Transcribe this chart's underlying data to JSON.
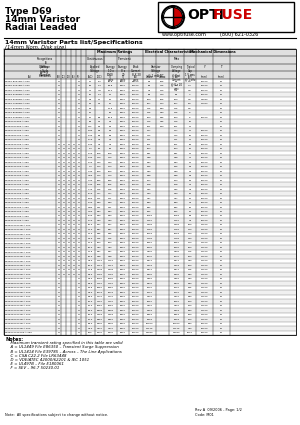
{
  "title_line1": "Type D69",
  "title_line2": "14mm Varistor",
  "title_line3": "Radial Leaded",
  "website": "www.optifuse.com",
  "phone": "(800) 621-0326",
  "section_title": "14mm Varistor Parts list/Specifications",
  "section_subtitle": "(14mm Nom. Disk size)",
  "logo_red": "#cc0000",
  "bg_color": "#ffffff",
  "footer_note": "Note:  All specifications subject to change without notice.",
  "revision": "Rev A  09/2006 - Page: 1/2",
  "code": "Code: M01",
  "table_rows": [
    [
      "D69Z1.8S070B-A.S50",
      "N",
      "",
      "",
      "",
      "N",
      "11",
      "14",
      "5.2",
      "50.8",
      "6000",
      "10000",
      "85",
      "205",
      "85",
      "2.5",
      "10000",
      "50",
      "0.0057|0.0142|0.813",
      "0.0193|0.4900|12.45"
    ],
    [
      "D69Z2.2S075B-A.S50",
      "N",
      "",
      "",
      "",
      "N",
      "14",
      "18",
      "6.3",
      "60.8",
      "6000",
      "10000",
      "90",
      "215",
      "90",
      "3.0",
      "10000",
      "50",
      "0.0057|0.0142|0.813",
      "0.0193|0.4900|12.45"
    ],
    [
      "D69Z2.7S082B-A.S50",
      "N",
      "",
      "",
      "",
      "N",
      "17",
      "21",
      "7.8",
      "70.4",
      "6000",
      "10000",
      "94",
      "226",
      "94",
      "3.5",
      "10000",
      "50",
      "0.0057|0.0142|0.813",
      "0.0193|0.4900|12.45"
    ],
    [
      "D69Z3.3S082B-A.S50",
      "N",
      "",
      "",
      "",
      "N",
      "21",
      "25",
      "9.4",
      "75",
      "6000",
      "10000",
      "96",
      "240",
      "96",
      "4",
      "10000",
      "50",
      "0.0057|0.0142|0.813",
      "0.0193|0.4900|12.45"
    ],
    [
      "D69Z3.9S082B-A.S50",
      "N",
      "",
      "",
      "",
      "N",
      "26",
      "31",
      "11",
      "75",
      "6000",
      "10000",
      "100",
      "255",
      "100",
      "4.5",
      "13333",
      "50",
      "0.0057|0.0142|0.813",
      "0.0193|0.4900|12.45"
    ],
    [
      "D69Z4.7S082B-A.S50",
      "N",
      "",
      "",
      "",
      "N",
      "31",
      "38",
      "13",
      "75",
      "6000",
      "10000",
      "107",
      "274",
      "107",
      "5.5",
      "14444",
      "50",
      "0.0057|0.0142|0.813",
      "0.0193|0.4900|12.45"
    ],
    [
      "D69Z5.6S082B-A.S50",
      "N",
      "",
      "",
      "",
      "N",
      "36",
      "45",
      "",
      "14.5",
      "6000",
      "10000",
      "115",
      "290",
      "115",
      "6.5",
      "",
      "50",
      "",
      ""
    ],
    [
      "D69Z6.8S082B-A.S50",
      "N",
      "",
      "",
      "",
      "N",
      "43",
      "56",
      "",
      "18",
      "6000",
      "10000",
      "125",
      "340",
      "125",
      "8",
      "",
      "50",
      "",
      ""
    ],
    [
      "D69Z8.2S082B-A.S50",
      "N",
      "",
      "",
      "",
      "N",
      "60",
      "75",
      "28",
      "26.5",
      "6000",
      "10000",
      "150",
      "365",
      "150",
      "8",
      "10000",
      "50",
      "0.0057|0.0142|0.813",
      "0.0193|0.4900|12.45"
    ],
    [
      "D69Z10S082B-A.S50",
      "N",
      "",
      "",
      "",
      "N",
      "70",
      "90",
      "33",
      "32",
      "6000",
      "10000",
      "176",
      "415",
      "176",
      "10",
      "",
      "50",
      "",
      ""
    ],
    [
      "D69Z12S082B-A.S50",
      "N",
      "",
      "",
      "",
      "N",
      "85",
      "112",
      "40",
      "40",
      "6000",
      "10000",
      "201",
      "480",
      "201",
      "12",
      "",
      "50",
      "",
      ""
    ],
    [
      "D69Z14S100B-A.S50",
      "N",
      "",
      "",
      "",
      "N",
      "1.40",
      "1.80",
      "78",
      "78",
      "6000",
      "10000",
      "227",
      "",
      "227",
      "14",
      "10000",
      "50",
      "",
      ""
    ],
    [
      "D69Z15S100B-A.S50",
      "N",
      "",
      "",
      "",
      "N",
      "1.50",
      "1.90",
      "82",
      "82",
      "6000",
      "10000",
      "242",
      "",
      "242",
      "15",
      "10000",
      "50",
      "",
      ""
    ],
    [
      "D69Z17S100B-A.S50",
      "N",
      "",
      "",
      "",
      "N",
      "1.70",
      "2.10",
      "94",
      "94",
      "6000",
      "10000",
      "271",
      "",
      "271",
      "17",
      "10000",
      "50",
      "",
      ""
    ],
    [
      "D69Z18S100B-A.S50",
      "N",
      "N",
      "N",
      "N",
      "N",
      "1.60",
      "1.90",
      "94",
      "94",
      "6000",
      "10000",
      "251",
      "",
      "251",
      "18",
      "10000",
      "50",
      "",
      ""
    ],
    [
      "D69Z20S100B-A.S50",
      "N",
      "N",
      "N",
      "N",
      "N",
      "1.60",
      "2.0",
      "98",
      "98",
      "6000",
      "10000",
      "264",
      "",
      "264",
      "20",
      "10000",
      "50",
      "",
      ""
    ],
    [
      "D69Z22S100B-A.S50",
      "N",
      "N",
      "N",
      "N",
      "N",
      "1.80",
      "2.20",
      "108",
      "108",
      "6000",
      "10000",
      "291",
      "",
      "291",
      "22",
      "10000",
      "50",
      "",
      ""
    ],
    [
      "D69Z24S100B-A.S50",
      "N",
      "N",
      "N",
      "N",
      "N",
      "1.90",
      "2.40",
      "119",
      "119",
      "6000",
      "10000",
      "318",
      "",
      "318",
      "24",
      "10000",
      "50",
      "",
      ""
    ],
    [
      "D69Z27S100B-A.S50",
      "N",
      "N",
      "N",
      "N",
      "N",
      "2.10",
      "2.70",
      "130",
      "130",
      "6000",
      "10000",
      "354",
      "",
      "354",
      "27",
      "10000",
      "50",
      "",
      ""
    ],
    [
      "D69Z30S100B-A.S50",
      "N",
      "N",
      "N",
      "N",
      "N",
      "2.40",
      "3.0",
      "143",
      "143",
      "6000",
      "10000",
      "396",
      "",
      "396",
      "30",
      "10000",
      "50",
      "",
      ""
    ],
    [
      "D69Z33S100B-A.S50",
      "N",
      "N",
      "N",
      "N",
      "N",
      "2.60",
      "3.30",
      "159",
      "159",
      "6000",
      "10000",
      "429",
      "",
      "429",
      "33",
      "10000",
      "50",
      "",
      ""
    ],
    [
      "D69Z36S100B-A.S50",
      "N",
      "N",
      "N",
      "N",
      "N",
      "2.90",
      "3.60",
      "173",
      "173",
      "6000",
      "10000",
      "468",
      "",
      "468",
      "36",
      "10000",
      "50",
      "",
      ""
    ],
    [
      "D69Z39S100B-A.S50",
      "N",
      "N",
      "N",
      "N",
      "N",
      "3.10",
      "3.90",
      "186",
      "186",
      "6000",
      "10000",
      "504",
      "",
      "504",
      "39",
      "10000",
      "50",
      "",
      ""
    ],
    [
      "D69Z43S100B-A.S50",
      "N",
      "N",
      "N",
      "N",
      "N",
      "3.40",
      "4.30",
      "205",
      "205",
      "6000",
      "10000",
      "558",
      "",
      "558",
      "43",
      "10000",
      "50",
      "",
      ""
    ],
    [
      "D69Z47S100B-A.S50",
      "N",
      "N",
      "N",
      "N",
      "N",
      "3.70",
      "4.70",
      "225",
      "225",
      "6000",
      "10000",
      "612",
      "",
      "612",
      "47",
      "10000",
      "50",
      "",
      ""
    ],
    [
      "D69Z51S100B-A.S50",
      "N",
      "N",
      "N",
      "N",
      "N",
      "4.10",
      "5.10",
      "247",
      "247",
      "6000",
      "10000",
      "670",
      "",
      "670",
      "51",
      "10000",
      "50",
      "",
      ""
    ],
    [
      "D69Z56S100B-A.S50",
      "N",
      "N",
      "N",
      "N",
      "N",
      "4.50",
      "5.60",
      "271",
      "271",
      "6000",
      "10000",
      "737",
      "",
      "737",
      "56",
      "10000",
      "50",
      "",
      ""
    ],
    [
      "D69Z62S100B-A.S50",
      "N",
      "N",
      "N",
      "N",
      "N",
      "4.90",
      "6.20",
      "300",
      "300",
      "6000",
      "10000",
      "820",
      "",
      "820",
      "62",
      "10000",
      "50",
      "",
      ""
    ],
    [
      "D69Z68S100B-A.S50",
      "N",
      "N",
      "N",
      "N",
      "N",
      "5.40",
      "6.80",
      "331",
      "331",
      "6000",
      "10000",
      "902",
      "",
      "902",
      "68",
      "10000",
      "50",
      "",
      ""
    ],
    [
      "D69Z75S100B-A.S50",
      "N",
      "N",
      "N",
      "N",
      "N",
      "5.90",
      "7.50",
      "364",
      "364",
      "6000",
      "10000",
      "992",
      "",
      "992",
      "75",
      "10000",
      "50",
      "",
      ""
    ],
    [
      "D69Z82S100B-A.S50",
      "N",
      "N",
      "N",
      "N",
      "N",
      "6.50",
      "8.20",
      "400",
      "400",
      "6000",
      "10000",
      "1089",
      "",
      "1089",
      "82",
      "10000",
      "50",
      "",
      ""
    ],
    [
      "D69Z91S100B-A.S50",
      "N",
      "N",
      "N",
      "N",
      "N",
      "7.20",
      "9.10",
      "443",
      "443",
      "6000",
      "10000",
      "1210",
      "",
      "1210",
      "91",
      "10000",
      "50",
      "",
      ""
    ],
    [
      "D69Z100S100B-A.S50",
      "N",
      "N",
      "N",
      "N",
      "N",
      "7.90",
      "10.0",
      "487",
      "487",
      "6000",
      "10000",
      "1329",
      "",
      "1329",
      "100",
      "14000",
      "50",
      "",
      ""
    ],
    [
      "D69Z110S100B-A.S50",
      "N",
      "N",
      "N",
      "N",
      "N",
      "8.70",
      "11.0",
      "537",
      "537",
      "6000",
      "10000",
      "1464",
      "",
      "1464",
      "110",
      "14000",
      "50",
      "",
      ""
    ],
    [
      "D69Z120S100B-A.S50",
      "N",
      "N",
      "N",
      "N",
      "N",
      "9.40",
      "12.0",
      "585",
      "585",
      "6000",
      "10000",
      "1598",
      "",
      "1598",
      "120",
      "14000",
      "50",
      "",
      ""
    ],
    [
      "D69Z130S100B-A.S50",
      "N",
      "N",
      "N",
      "N",
      "N",
      "10.2",
      "13.0",
      "635",
      "635",
      "6000",
      "10000",
      "1729",
      "",
      "1729",
      "130",
      "14000",
      "50",
      "",
      ""
    ],
    [
      "D69Z140S100B-A.S50",
      "N",
      "N",
      "N",
      "N",
      "N",
      "11.0",
      "14.0",
      "684",
      "684",
      "6000",
      "10000",
      "1860",
      "",
      "1860",
      "140",
      "14000",
      "50",
      "",
      ""
    ],
    [
      "D69Z150S100B-A.S50",
      "N",
      "N",
      "N",
      "N",
      "N",
      "11.8",
      "15.0",
      "733",
      "733",
      "6000",
      "10000",
      "1991",
      "",
      "1991",
      "150",
      "14000",
      "50",
      "",
      ""
    ],
    [
      "D69Z175S100B-A.S50",
      "N",
      "N",
      "N",
      "N",
      "N",
      "13.7",
      "17.5",
      "857",
      "857",
      "6000",
      "10000",
      "2332",
      "",
      "2332",
      "175",
      "14000",
      "50",
      "",
      ""
    ],
    [
      "D69Z200S100B-A.S50",
      "N",
      "N",
      "N",
      "N",
      "N",
      "15.6",
      "20.0",
      "978",
      "978",
      "6000",
      "10000",
      "2670",
      "",
      "2670",
      "200",
      "14000",
      "50",
      "",
      ""
    ],
    [
      "D69Z230S100B-A.S50",
      "N",
      "N",
      "N",
      "N",
      "N",
      "18.0",
      "23.0",
      "1124",
      "1124",
      "6000",
      "10000",
      "3072",
      "",
      "3072",
      "230",
      "14000",
      "50",
      "",
      ""
    ],
    [
      "D69Z250S100B-A.S50",
      "N",
      "N",
      "N",
      "N",
      "N",
      "19.5",
      "25.0",
      "1222",
      "1222",
      "6000",
      "10000",
      "3338",
      "",
      "3338",
      "250",
      "14000",
      "50",
      "",
      ""
    ],
    [
      "D69Z275S100B-A.S50",
      "N",
      "N",
      "N",
      "N",
      "N",
      "21.5",
      "27.5",
      "1343",
      "1343",
      "6000",
      "10000",
      "3672",
      "",
      "3672",
      "275",
      "14000",
      "50",
      "",
      ""
    ],
    [
      "D69Z300S100B-A.S50",
      "N",
      "N",
      "N",
      "N",
      "N",
      "23.4",
      "30.0",
      "1464",
      "1464",
      "6000",
      "10000",
      "4002",
      "",
      "4002",
      "300",
      "14000",
      "50",
      "",
      ""
    ],
    [
      "D69Z320S100B-A.S50",
      "N",
      "",
      "",
      "",
      "N",
      "25.0",
      "32.0",
      "1562",
      "1562",
      "6000",
      "10000",
      "4266",
      "",
      "4266",
      "320",
      "14000",
      "50",
      "",
      ""
    ],
    [
      "D69Z350S100B-A.S50",
      "N",
      "",
      "",
      "",
      "N",
      "27.3",
      "35.0",
      "1710",
      "1710",
      "6000",
      "10000",
      "4670",
      "",
      "4670",
      "350",
      "14000",
      "50",
      "",
      ""
    ],
    [
      "D69Z385S100B-A.S50",
      "N",
      "",
      "",
      "",
      "N",
      "30.1",
      "38.5",
      "1880",
      "1880",
      "6000",
      "10000",
      "5135",
      "",
      "5135",
      "385",
      "14000",
      "50",
      "",
      ""
    ],
    [
      "D69Z420S100B-A.S50",
      "N",
      "",
      "",
      "",
      "N",
      "32.7",
      "42.0",
      "2049",
      "2049",
      "6000",
      "10000",
      "5600",
      "",
      "5600",
      "420",
      "14000",
      "50",
      "",
      ""
    ],
    [
      "D69Z460S100B-A.S50",
      "N",
      "",
      "",
      "",
      "N",
      "35.9",
      "46.0",
      "2245",
      "2245",
      "6000",
      "10000",
      "6135",
      "",
      "6135",
      "460",
      "14000",
      "50",
      "",
      ""
    ],
    [
      "D69Z510S100B-A.S50",
      "N",
      "",
      "",
      "",
      "N",
      "39.9",
      "51.0",
      "2490",
      "2490",
      "6000",
      "10000",
      "6810",
      "",
      "6810",
      "510",
      "14000",
      "50",
      "",
      ""
    ],
    [
      "D69Z550S100B-A.S50",
      "N",
      "",
      "",
      "",
      "N",
      "43.0",
      "55.0",
      "2685",
      "2685",
      "6000",
      "10000",
      "7335",
      "",
      "7335",
      "550",
      "14000",
      "50",
      "",
      ""
    ],
    [
      "D69Z600S100B-A.S50",
      "N",
      "",
      "",
      "",
      "N",
      "46.9",
      "60.0",
      "2928",
      "2928",
      "6000",
      "10000",
      "7998",
      "",
      "7998",
      "600",
      "14000",
      "50",
      "",
      ""
    ],
    [
      "D69Z680S100B-A.S50",
      "N",
      "",
      "",
      "",
      "N",
      "53.2",
      "68.0",
      "3318",
      "3318",
      "6000",
      "10000",
      "9069",
      "",
      "9069",
      "680",
      "14000",
      "50",
      "",
      ""
    ],
    [
      "D69Z750S100B-A.S50",
      "N",
      "",
      "",
      "",
      "N",
      "58.6",
      "75.0",
      "3660",
      "3660",
      "6000",
      "10000",
      "9998",
      "",
      "9998",
      "750",
      "14000",
      "50",
      "",
      ""
    ],
    [
      "D69Z820S100B-A.S50",
      "N",
      "",
      "",
      "",
      "N",
      "1.000",
      "82.0",
      "4002",
      "4002",
      "6000",
      "10000",
      "10913",
      "",
      "10913",
      "820",
      "15000",
      "50",
      "",
      ""
    ],
    [
      "D69Z910S100B-A.S50",
      "N",
      "",
      "",
      "",
      "N",
      "1.100",
      "91.0",
      "4440",
      "4440",
      "6000",
      "10000",
      "12115",
      "",
      "12115",
      "910",
      "15000",
      "50",
      "",
      ""
    ],
    [
      "D69Z1000S100B-A.S50",
      "N",
      "",
      "",
      "",
      "N",
      "1.200",
      "100",
      "4870",
      "4870",
      "6000",
      "10000",
      "13290",
      "",
      "13290",
      "1000",
      "15000",
      "50",
      "",
      ""
    ]
  ],
  "notes": [
    "Notes:",
    "  Maximum transient rating specified in this table are valid",
    "  A = UL1449 File E86350 – Transient Surge Suppression",
    "  B = UL1414 File E39785 – Across – The Line Applications",
    "  C = CSA C22.2 File LR63448",
    "  D = VDE/ATEC 42000/62201 & IEC 1051",
    "  E = UL497B – File E180061",
    "  F = SEV – 96.7 50230.01"
  ]
}
